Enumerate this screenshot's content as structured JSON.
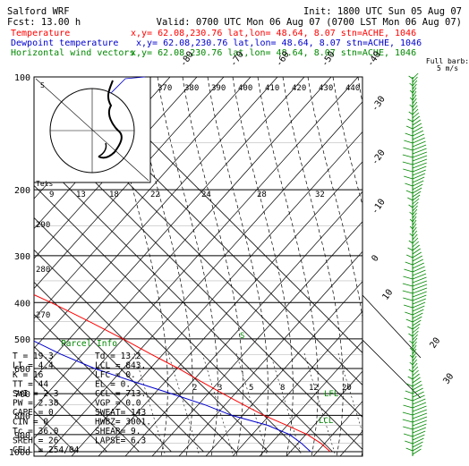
{
  "header": {
    "model": "Salford WRF",
    "fcst": "Fcst:   13.00 h",
    "init": "Init: 1800 UTC Sun 05 Aug 07",
    "valid": "Valid: 0700 UTC Mon 06 Aug 07 (0700 LST Mon 06 Aug 07)",
    "temp_label": "Temperature",
    "dew_label": "Dewpoint temperature",
    "wind_label": "Horizontal wind vectors",
    "temp_loc": "x,y= 62.08,230.76   lat,lon= 48.64,   8.07  stn=ACHE, 1046",
    "dew_loc": "x,y= 62.08,230.76   lat,lon= 48.64,   8.07  stn=ACHE, 1046",
    "wind_loc": "x,y= 62.08,230.76   lat,lon= 48.64,   8.07  stn=ACHE, 1046",
    "barb_key": "Full barb:",
    "barb_unit": "5 m/s"
  },
  "colors": {
    "temperature": "#ff0000",
    "dewpoint": "#0000cc",
    "wind": "#008800",
    "parcel": "#008800"
  },
  "parcel": {
    "title": "Parcel Info",
    "rows": [
      [
        "T    =   19.3",
        "Td = 13.2"
      ],
      [
        "LI   =    4.4",
        "LCL =  843."
      ],
      [
        "K    =     16",
        "LFC =     0."
      ],
      [
        "TT   =     44",
        "EL  =     0."
      ],
      [
        "SWI  =    2.3",
        "CCL =  713."
      ],
      [
        "PW   =   2.38",
        "VGP =   0.0"
      ],
      [
        "CAPE =      0",
        "SWEAT=   143"
      ],
      [
        "CIN  =      0",
        "HWBZ= 3001."
      ],
      [
        "Tc   =   36.0",
        "SHEAR=    9."
      ],
      [
        "SREH =     26",
        "LAPSE=   6.3"
      ],
      [
        "CELL = 254/04",
        ""
      ]
    ]
  },
  "inset": {
    "label": "Tets"
  },
  "annotations": {
    "lfl": "LFL",
    "lcl": "LCL",
    "s": "S"
  },
  "chart_data": {
    "type": "skew-t log-p",
    "pressure_levels": [
      100,
      200,
      300,
      400,
      500,
      600,
      700,
      800,
      900,
      1000
    ],
    "isotherm_labels": [
      -80,
      -70,
      -60,
      -50,
      -40,
      -30,
      -20,
      -10,
      0,
      10,
      20,
      30,
      40
    ],
    "theta_labels": [
      370,
      380,
      390,
      400,
      410,
      420,
      430,
      440
    ],
    "mixing_ratio_labels_upper": [
      9,
      13,
      18,
      22,
      24,
      28,
      32
    ],
    "mixing_ratio_labels_lower": [
      2,
      3,
      5,
      8,
      12,
      20
    ],
    "left_labels": [
      290,
      280,
      270
    ],
    "temperature": {
      "name": "Temperature",
      "points": [
        {
          "p": 1000,
          "t": 19.3
        },
        {
          "p": 950,
          "t": 19.0
        },
        {
          "p": 900,
          "t": 17.5
        },
        {
          "p": 850,
          "t": 14.0
        },
        {
          "p": 800,
          "t": 10.0
        },
        {
          "p": 750,
          "t": 7.0
        },
        {
          "p": 700,
          "t": 4.0
        },
        {
          "p": 650,
          "t": 1.0
        },
        {
          "p": 600,
          "t": -2.0
        },
        {
          "p": 550,
          "t": -6.0
        },
        {
          "p": 500,
          "t": -10.0
        },
        {
          "p": 450,
          "t": -15.0
        },
        {
          "p": 400,
          "t": -21.0
        },
        {
          "p": 350,
          "t": -29.0
        },
        {
          "p": 300,
          "t": -37.0
        },
        {
          "p": 250,
          "t": -48.0
        },
        {
          "p": 220,
          "t": -55.0
        },
        {
          "p": 200,
          "t": -56.0
        },
        {
          "p": 180,
          "t": -56.0
        },
        {
          "p": 150,
          "t": -57.0
        },
        {
          "p": 130,
          "t": -58.0
        },
        {
          "p": 110,
          "t": -60.0
        },
        {
          "p": 100,
          "t": -61.0
        }
      ]
    },
    "dewpoint": {
      "name": "Dewpoint temperature",
      "points": [
        {
          "p": 1000,
          "t": 13.2
        },
        {
          "p": 950,
          "t": 13.0
        },
        {
          "p": 900,
          "t": 12.0
        },
        {
          "p": 850,
          "t": 8.0
        },
        {
          "p": 800,
          "t": 0.0
        },
        {
          "p": 750,
          "t": -5.0
        },
        {
          "p": 700,
          "t": -12.0
        },
        {
          "p": 650,
          "t": -20.0
        },
        {
          "p": 600,
          "t": -28.0
        },
        {
          "p": 550,
          "t": -34.0
        },
        {
          "p": 500,
          "t": -39.0
        },
        {
          "p": 450,
          "t": -47.0
        },
        {
          "p": 400,
          "t": -60.0
        },
        {
          "p": 350,
          "t": -54.0
        },
        {
          "p": 300,
          "t": -46.0
        },
        {
          "p": 260,
          "t": -58.0
        },
        {
          "p": 230,
          "t": -65.0
        },
        {
          "p": 200,
          "t": -73.0
        },
        {
          "p": 170,
          "t": -82.0
        },
        {
          "p": 150,
          "t": -88.0
        },
        {
          "p": 120,
          "t": -92.0
        },
        {
          "p": 100,
          "t": -94.0
        }
      ]
    }
  }
}
